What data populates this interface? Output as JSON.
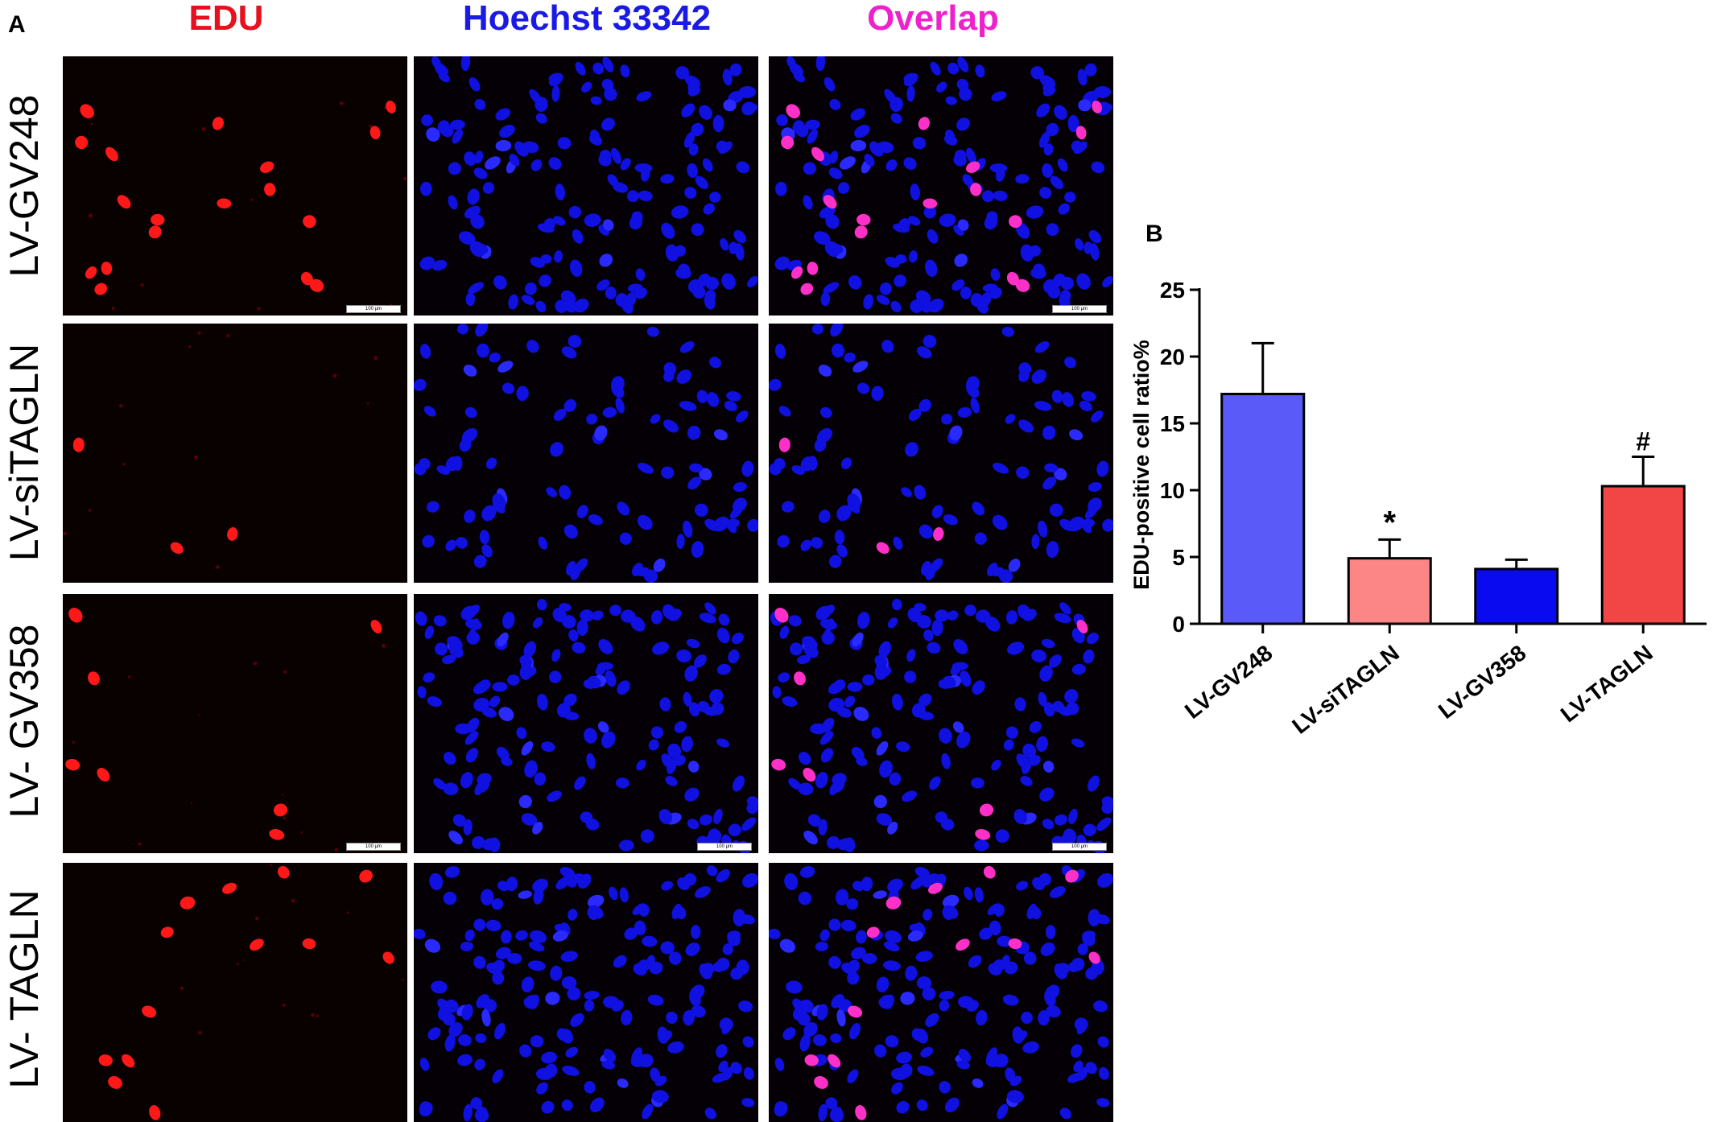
{
  "figure": {
    "panel_a_label": "A",
    "panel_b_label": "B",
    "columns": [
      {
        "label": "EDU",
        "color": "#e8101e"
      },
      {
        "label": "Hoechst 33342",
        "color": "#1a1ae6"
      },
      {
        "label": "Overlap",
        "color": "#ee22cc"
      }
    ],
    "rows": [
      {
        "label": "LV-GV248"
      },
      {
        "label": "LV-siTAGLN"
      },
      {
        "label": "LV- GV358"
      },
      {
        "label": "LV- TAGLN"
      }
    ],
    "scale_bar_text": "100 μm"
  },
  "chart_data": {
    "type": "bar",
    "title": "",
    "xlabel": "",
    "ylabel": "EDU-positive cell ratio%",
    "categories": [
      "LV-GV248",
      "LV-siTAGLN",
      "LV-GV358",
      "LV-TAGLN"
    ],
    "values": [
      17.2,
      4.9,
      4.1,
      10.3
    ],
    "errors": [
      3.8,
      1.4,
      0.7,
      2.2
    ],
    "bar_colors": [
      "#5a5af8",
      "#fc8585",
      "#0a0af0",
      "#f24545"
    ],
    "annotations": [
      "",
      "*",
      "",
      "#"
    ],
    "ylim": [
      0,
      25
    ],
    "yticks": [
      0,
      5,
      10,
      15,
      20,
      25
    ],
    "grid": false,
    "legend": "none"
  }
}
